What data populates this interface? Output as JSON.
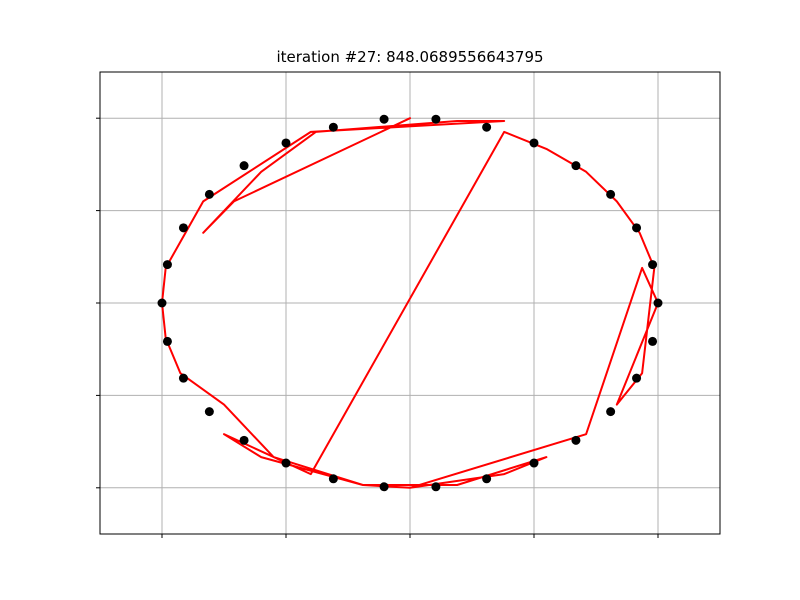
{
  "chart_data": {
    "type": "scatter",
    "title": "iteration #27: 848.0689556643795",
    "xlabel": "",
    "ylabel": "",
    "xlim": [
      -1.25,
      1.25
    ],
    "ylim": [
      -1.25,
      1.25
    ],
    "grid": true,
    "xticks": [
      -1.0,
      -0.5,
      0.0,
      0.5,
      1.0
    ],
    "yticks": [
      -1.0,
      -0.5,
      0.0,
      0.5,
      1.0
    ],
    "series": [
      {
        "name": "cities",
        "kind": "points",
        "color": "#000000",
        "x": [
          1.0,
          0.9781,
          0.9135,
          0.809,
          0.6691,
          0.5,
          0.309,
          0.1045,
          -0.1045,
          -0.309,
          -0.5,
          -0.6691,
          -0.809,
          -0.9135,
          -0.9781,
          -1.0,
          -0.9781,
          -0.9135,
          -0.809,
          -0.6691,
          -0.5,
          -0.309,
          -0.1045,
          0.1045,
          0.309,
          0.5,
          0.6691,
          0.809,
          0.9135,
          0.9781
        ],
        "y": [
          0.0,
          0.2079,
          0.4067,
          0.5878,
          0.7431,
          0.866,
          0.9511,
          0.9945,
          0.9945,
          0.9511,
          0.866,
          0.7431,
          0.5878,
          0.4067,
          0.2079,
          0.0,
          -0.2079,
          -0.4067,
          -0.5878,
          -0.7431,
          -0.866,
          -0.9511,
          -0.9945,
          -0.9945,
          -0.9511,
          -0.866,
          -0.7431,
          -0.5878,
          -0.4067,
          -0.2079
        ]
      },
      {
        "name": "tour",
        "kind": "path",
        "color": "#ff0000",
        "x": [
          0.0,
          -0.19,
          -0.6,
          -0.75,
          -0.4,
          0.38,
          0.55,
          0.71,
          0.834,
          0.926,
          0.985,
          0.936,
          0.834,
          1.0,
          0.936,
          0.71,
          0.0,
          0.38,
          0.55,
          0.19,
          -0.19,
          -0.55,
          -0.75,
          -0.926,
          -0.985,
          -1.0,
          -0.985,
          -0.834,
          -0.4,
          0.38,
          0.19,
          -0.38,
          -0.6,
          -0.834,
          -0.71,
          0.0
        ],
        "y": [
          -1.0,
          -0.985,
          -0.834,
          -0.71,
          -0.926,
          0.926,
          0.834,
          0.71,
          0.55,
          0.38,
          0.19,
          -0.38,
          -0.55,
          0.0,
          0.19,
          -0.71,
          -1.0,
          -0.926,
          -0.834,
          -0.985,
          -0.985,
          -0.834,
          -0.55,
          -0.38,
          -0.19,
          0.0,
          0.19,
          0.55,
          0.926,
          0.985,
          0.985,
          0.926,
          0.71,
          0.38,
          0.55,
          1.0
        ]
      }
    ]
  }
}
